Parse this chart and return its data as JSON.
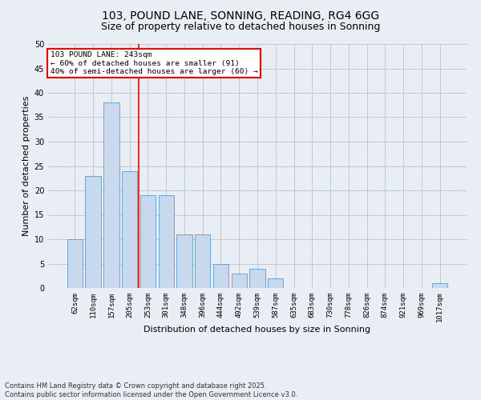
{
  "title1": "103, POUND LANE, SONNING, READING, RG4 6GG",
  "title2": "Size of property relative to detached houses in Sonning",
  "xlabel": "Distribution of detached houses by size in Sonning",
  "ylabel": "Number of detached properties",
  "categories": [
    "62sqm",
    "110sqm",
    "157sqm",
    "205sqm",
    "253sqm",
    "301sqm",
    "348sqm",
    "396sqm",
    "444sqm",
    "492sqm",
    "539sqm",
    "587sqm",
    "635sqm",
    "683sqm",
    "730sqm",
    "778sqm",
    "826sqm",
    "874sqm",
    "921sqm",
    "969sqm",
    "1017sqm"
  ],
  "values": [
    10,
    23,
    38,
    24,
    19,
    19,
    11,
    11,
    5,
    3,
    4,
    2,
    0,
    0,
    0,
    0,
    0,
    0,
    0,
    0,
    1
  ],
  "bar_color": "#c8d9ed",
  "bar_edge_color": "#5b9bd5",
  "grid_color": "#c0c8d0",
  "bg_color": "#e8eef4",
  "vline_x_index": 4,
  "vline_color": "red",
  "annotation_text": "103 POUND LANE: 243sqm\n← 60% of detached houses are smaller (91)\n40% of semi-detached houses are larger (60) →",
  "annotation_box_color": "white",
  "annotation_box_edge": "red",
  "ylim": [
    0,
    50
  ],
  "yticks": [
    0,
    5,
    10,
    15,
    20,
    25,
    30,
    35,
    40,
    45,
    50
  ],
  "footnote": "Contains HM Land Registry data © Crown copyright and database right 2025.\nContains public sector information licensed under the Open Government Licence v3.0.",
  "title_fontsize": 10,
  "subtitle_fontsize": 9,
  "tick_fontsize": 6.5,
  "label_fontsize": 8,
  "annot_fontsize": 6.8,
  "footnote_fontsize": 6
}
